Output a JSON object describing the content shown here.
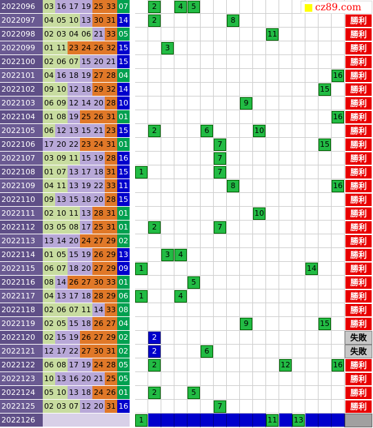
{
  "colors": {
    "period_bg": "#5f4f87",
    "period_bg_alt": "#6a5a92",
    "zone1": "#c8dca0",
    "zone2": "#b8a8d8",
    "zone3": "#e07828",
    "zone4_blue": "#0000cc",
    "zone4_green": "#00a050",
    "mark_green": "#22bb44",
    "mark_blue": "#0000cc",
    "win_bg": "#e80000",
    "lose_bg": "#c8c8c8"
  },
  "logo": {
    "text": "cz89.com"
  },
  "mark_columns": 16,
  "rows": [
    {
      "period": "2022096",
      "nums": [
        "03",
        "16",
        "17",
        "19",
        "25",
        "33",
        "07"
      ],
      "marks": [
        {
          "c": 1,
          "v": "2"
        },
        {
          "c": 3,
          "v": "4"
        },
        {
          "c": 4,
          "v": "5"
        }
      ],
      "result": "",
      "result_type": "none",
      "last": "green"
    },
    {
      "period": "2022097",
      "nums": [
        "04",
        "05",
        "10",
        "13",
        "30",
        "31",
        "14"
      ],
      "marks": [
        {
          "c": 1,
          "v": "2"
        },
        {
          "c": 7,
          "v": "8"
        }
      ],
      "result": "勝利",
      "result_type": "win",
      "last": "blue"
    },
    {
      "period": "2022098",
      "nums": [
        "02",
        "03",
        "04",
        "06",
        "21",
        "33",
        "05"
      ],
      "marks": [
        {
          "c": 10,
          "v": "11"
        }
      ],
      "result": "勝利",
      "result_type": "win",
      "last": "green"
    },
    {
      "period": "2022099",
      "nums": [
        "01",
        "11",
        "23",
        "24",
        "26",
        "32",
        "15"
      ],
      "marks": [
        {
          "c": 2,
          "v": "3"
        }
      ],
      "result": "勝利",
      "result_type": "win",
      "last": "blue"
    },
    {
      "period": "2022100",
      "nums": [
        "02",
        "06",
        "07",
        "15",
        "20",
        "21",
        "15"
      ],
      "marks": [],
      "result": "勝利",
      "result_type": "win",
      "last": "blue"
    },
    {
      "period": "2022101",
      "nums": [
        "04",
        "16",
        "18",
        "19",
        "27",
        "28",
        "04"
      ],
      "marks": [
        {
          "c": 15,
          "v": "16"
        }
      ],
      "result": "勝利",
      "result_type": "win",
      "last": "green"
    },
    {
      "period": "2022102",
      "nums": [
        "09",
        "10",
        "12",
        "18",
        "29",
        "32",
        "14"
      ],
      "marks": [
        {
          "c": 14,
          "v": "15"
        }
      ],
      "result": "勝利",
      "result_type": "win",
      "last": "blue"
    },
    {
      "period": "2022103",
      "nums": [
        "06",
        "09",
        "12",
        "14",
        "20",
        "28",
        "10"
      ],
      "marks": [
        {
          "c": 8,
          "v": "9"
        }
      ],
      "result": "勝利",
      "result_type": "win",
      "last": "blue"
    },
    {
      "period": "2022104",
      "nums": [
        "01",
        "08",
        "19",
        "25",
        "26",
        "31",
        "01"
      ],
      "marks": [
        {
          "c": 15,
          "v": "16"
        }
      ],
      "result": "勝利",
      "result_type": "win",
      "last": "green"
    },
    {
      "period": "2022105",
      "nums": [
        "06",
        "12",
        "13",
        "15",
        "21",
        "23",
        "15"
      ],
      "marks": [
        {
          "c": 1,
          "v": "2"
        },
        {
          "c": 5,
          "v": "6"
        },
        {
          "c": 9,
          "v": "10"
        }
      ],
      "result": "勝利",
      "result_type": "win",
      "last": "blue"
    },
    {
      "period": "2022106",
      "nums": [
        "17",
        "20",
        "22",
        "23",
        "24",
        "31",
        "01"
      ],
      "marks": [
        {
          "c": 6,
          "v": "7"
        },
        {
          "c": 14,
          "v": "15"
        }
      ],
      "result": "勝利",
      "result_type": "win",
      "last": "green"
    },
    {
      "period": "2022107",
      "nums": [
        "03",
        "09",
        "11",
        "15",
        "19",
        "28",
        "16"
      ],
      "marks": [
        {
          "c": 6,
          "v": "7"
        }
      ],
      "result": "勝利",
      "result_type": "win",
      "last": "blue"
    },
    {
      "period": "2022108",
      "nums": [
        "01",
        "07",
        "13",
        "17",
        "18",
        "31",
        "15"
      ],
      "marks": [
        {
          "c": 0,
          "v": "1"
        },
        {
          "c": 6,
          "v": "7"
        }
      ],
      "result": "勝利",
      "result_type": "win",
      "last": "blue"
    },
    {
      "period": "2022109",
      "nums": [
        "04",
        "11",
        "13",
        "19",
        "22",
        "33",
        "11"
      ],
      "marks": [
        {
          "c": 7,
          "v": "8"
        },
        {
          "c": 15,
          "v": "16"
        }
      ],
      "result": "勝利",
      "result_type": "win",
      "last": "blue"
    },
    {
      "period": "2022110",
      "nums": [
        "09",
        "13",
        "15",
        "18",
        "20",
        "28",
        "15"
      ],
      "marks": [],
      "result": "勝利",
      "result_type": "win",
      "last": "blue"
    },
    {
      "period": "2022111",
      "nums": [
        "02",
        "10",
        "11",
        "13",
        "28",
        "31",
        "01"
      ],
      "marks": [
        {
          "c": 9,
          "v": "10"
        }
      ],
      "result": "勝利",
      "result_type": "win",
      "last": "green"
    },
    {
      "period": "2022112",
      "nums": [
        "03",
        "05",
        "08",
        "17",
        "25",
        "31",
        "01"
      ],
      "marks": [
        {
          "c": 1,
          "v": "2"
        },
        {
          "c": 6,
          "v": "7"
        }
      ],
      "result": "勝利",
      "result_type": "win",
      "last": "green"
    },
    {
      "period": "2022113",
      "nums": [
        "13",
        "14",
        "20",
        "24",
        "27",
        "29",
        "02"
      ],
      "marks": [],
      "result": "勝利",
      "result_type": "win",
      "last": "green"
    },
    {
      "period": "2022114",
      "nums": [
        "01",
        "05",
        "15",
        "19",
        "26",
        "29",
        "13"
      ],
      "marks": [
        {
          "c": 2,
          "v": "3"
        },
        {
          "c": 3,
          "v": "4"
        }
      ],
      "result": "勝利",
      "result_type": "win",
      "last": "blue"
    },
    {
      "period": "2022115",
      "nums": [
        "06",
        "07",
        "18",
        "20",
        "27",
        "29",
        "09"
      ],
      "marks": [
        {
          "c": 0,
          "v": "1"
        },
        {
          "c": 13,
          "v": "14"
        }
      ],
      "result": "勝利",
      "result_type": "win",
      "last": "blue"
    },
    {
      "period": "2022116",
      "nums": [
        "08",
        "14",
        "26",
        "27",
        "30",
        "33",
        "01"
      ],
      "marks": [
        {
          "c": 4,
          "v": "5"
        }
      ],
      "result": "勝利",
      "result_type": "win",
      "last": "green"
    },
    {
      "period": "2022117",
      "nums": [
        "04",
        "13",
        "17",
        "18",
        "28",
        "29",
        "06"
      ],
      "marks": [
        {
          "c": 0,
          "v": "1"
        },
        {
          "c": 3,
          "v": "4"
        }
      ],
      "result": "勝利",
      "result_type": "win",
      "last": "green"
    },
    {
      "period": "2022118",
      "nums": [
        "02",
        "06",
        "07",
        "11",
        "14",
        "33",
        "08"
      ],
      "marks": [],
      "result": "勝利",
      "result_type": "win",
      "last": "green"
    },
    {
      "period": "2022119",
      "nums": [
        "02",
        "05",
        "15",
        "18",
        "26",
        "27",
        "04"
      ],
      "marks": [
        {
          "c": 8,
          "v": "9"
        },
        {
          "c": 14,
          "v": "15"
        }
      ],
      "result": "勝利",
      "result_type": "win",
      "last": "green"
    },
    {
      "period": "2022120",
      "nums": [
        "02",
        "15",
        "19",
        "26",
        "27",
        "29",
        "02"
      ],
      "marks": [
        {
          "c": 1,
          "v": "2",
          "blue": true
        }
      ],
      "result": "失敗",
      "result_type": "lose",
      "last": "green"
    },
    {
      "period": "2022121",
      "nums": [
        "12",
        "17",
        "22",
        "27",
        "30",
        "31",
        "02"
      ],
      "marks": [
        {
          "c": 1,
          "v": "2",
          "blue": true
        },
        {
          "c": 5,
          "v": "6"
        }
      ],
      "result": "失敗",
      "result_type": "lose",
      "last": "green"
    },
    {
      "period": "2022122",
      "nums": [
        "06",
        "08",
        "17",
        "19",
        "24",
        "28",
        "05"
      ],
      "marks": [
        {
          "c": 1,
          "v": "2"
        },
        {
          "c": 11,
          "v": "12"
        },
        {
          "c": 15,
          "v": "16"
        }
      ],
      "result": "勝利",
      "result_type": "win",
      "last": "green"
    },
    {
      "period": "2022123",
      "nums": [
        "10",
        "13",
        "16",
        "20",
        "21",
        "25",
        "05"
      ],
      "marks": [],
      "result": "勝利",
      "result_type": "win",
      "last": "green"
    },
    {
      "period": "2022124",
      "nums": [
        "05",
        "10",
        "13",
        "18",
        "24",
        "26",
        "01"
      ],
      "marks": [
        {
          "c": 1,
          "v": "2"
        },
        {
          "c": 4,
          "v": "5"
        }
      ],
      "result": "勝利",
      "result_type": "win",
      "last": "green"
    },
    {
      "period": "2022125",
      "nums": [
        "02",
        "03",
        "07",
        "12",
        "20",
        "31",
        "16"
      ],
      "marks": [
        {
          "c": 6,
          "v": "7"
        }
      ],
      "result": "勝利",
      "result_type": "win",
      "last": "blue"
    }
  ],
  "next_row": {
    "period": "2022126",
    "nums": [
      "",
      "",
      "",
      "",
      "",
      "",
      ""
    ],
    "marks": [
      {
        "c": 0,
        "v": "1"
      },
      {
        "c": 10,
        "v": "11"
      },
      {
        "c": 12,
        "v": "13"
      }
    ],
    "blue_columns": [
      1,
      2,
      3,
      4,
      5,
      6,
      7,
      8,
      9,
      11,
      13,
      14,
      15
    ],
    "result": "",
    "result_type": "pending"
  }
}
